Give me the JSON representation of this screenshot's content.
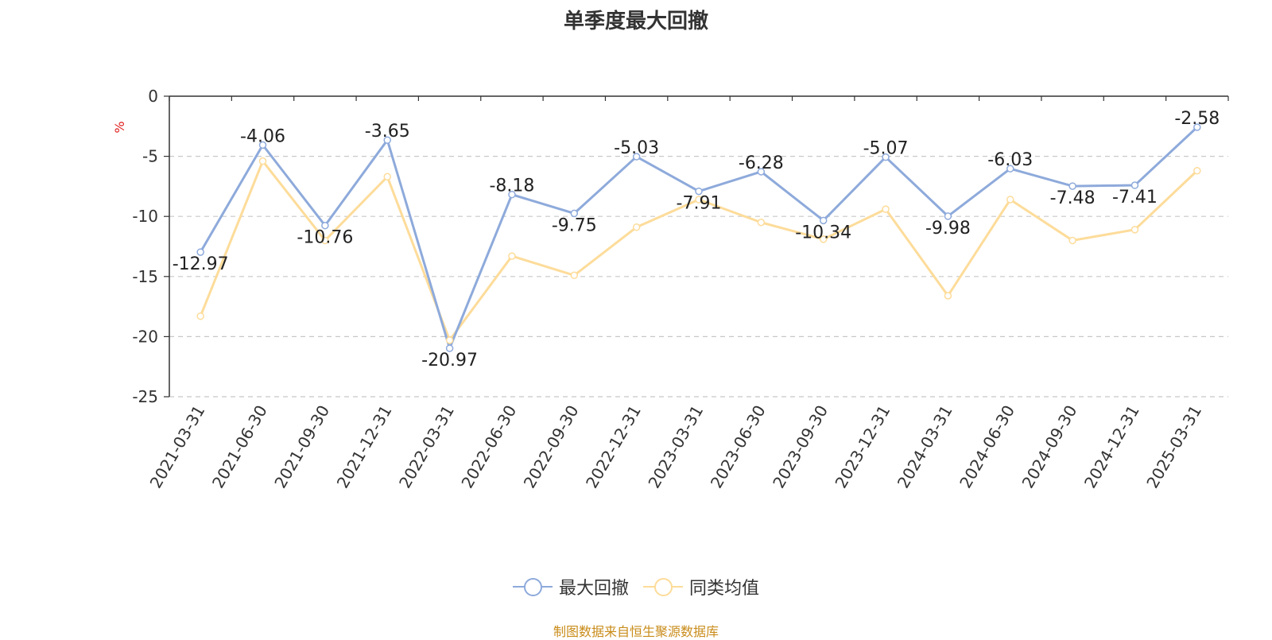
{
  "chart_data": {
    "type": "line",
    "title": "单季度最大回撤",
    "ylabel": "%",
    "xlabel": "",
    "ylim": [
      -25,
      0
    ],
    "yticks": [
      0,
      -5,
      -10,
      -15,
      -20,
      -25
    ],
    "grid": true,
    "legend_position": "bottom",
    "categories": [
      "2021-03-31",
      "2021-06-30",
      "2021-09-30",
      "2021-12-31",
      "2022-03-31",
      "2022-06-30",
      "2022-09-30",
      "2022-12-31",
      "2023-03-31",
      "2023-06-30",
      "2023-09-30",
      "2023-12-31",
      "2024-03-31",
      "2024-06-30",
      "2024-09-30",
      "2024-12-31",
      "2025-03-31"
    ],
    "series": [
      {
        "name": "最大回撤",
        "color": "#8eaadb",
        "show_labels": true,
        "values": [
          -12.97,
          -4.06,
          -10.76,
          -3.65,
          -20.97,
          -8.18,
          -9.75,
          -5.03,
          -7.91,
          -6.28,
          -10.34,
          -5.07,
          -9.98,
          -6.03,
          -7.48,
          -7.41,
          -2.58
        ]
      },
      {
        "name": "同类均值",
        "color": "#fddc9a",
        "show_labels": false,
        "values": [
          -18.3,
          -5.4,
          -12.0,
          -6.7,
          -20.3,
          -13.3,
          -14.9,
          -10.9,
          -8.6,
          -10.5,
          -11.9,
          -9.4,
          -16.6,
          -8.6,
          -12.0,
          -11.1,
          -6.2
        ]
      }
    ]
  },
  "source_note": "制图数据来自恒生聚源数据库"
}
